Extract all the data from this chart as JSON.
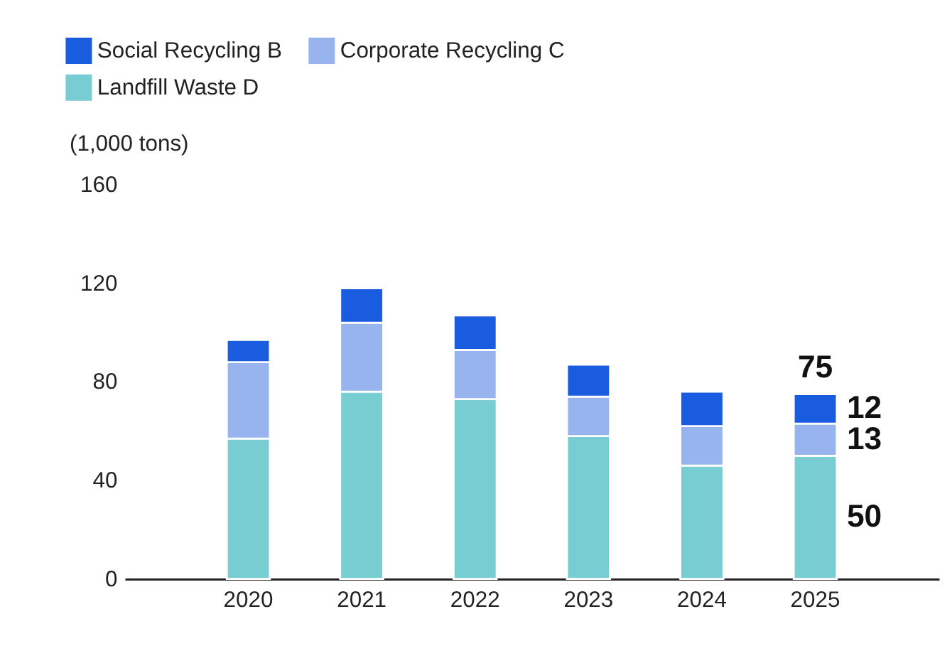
{
  "chart_data": {
    "type": "bar",
    "stacked": true,
    "ylabel": "(1,000 tons)",
    "categories": [
      "2020",
      "2021",
      "2022",
      "2023",
      "2024",
      "2025"
    ],
    "series": [
      {
        "name": "Landfill Waste D",
        "color": "#77cdd1",
        "values": [
          57,
          76,
          73,
          58,
          46,
          50
        ],
        "value_labels": [
          null,
          null,
          null,
          null,
          null,
          "50"
        ]
      },
      {
        "name": "Corporate Recycling C",
        "color": "#97b4ef",
        "values": [
          31,
          28,
          20,
          16,
          16,
          13
        ],
        "value_labels": [
          null,
          null,
          null,
          null,
          null,
          "13"
        ]
      },
      {
        "name": "Social Recycling B",
        "color": "#1a5ce0",
        "values": [
          9,
          14,
          14,
          13,
          14,
          12
        ],
        "value_labels": [
          null,
          null,
          null,
          null,
          null,
          "12"
        ]
      }
    ],
    "totals": [
      null,
      null,
      null,
      null,
      null,
      "75"
    ],
    "ylim": [
      0,
      160
    ],
    "yticks": [
      0,
      40,
      80,
      120,
      160
    ],
    "grid": false,
    "legend": "top left"
  }
}
